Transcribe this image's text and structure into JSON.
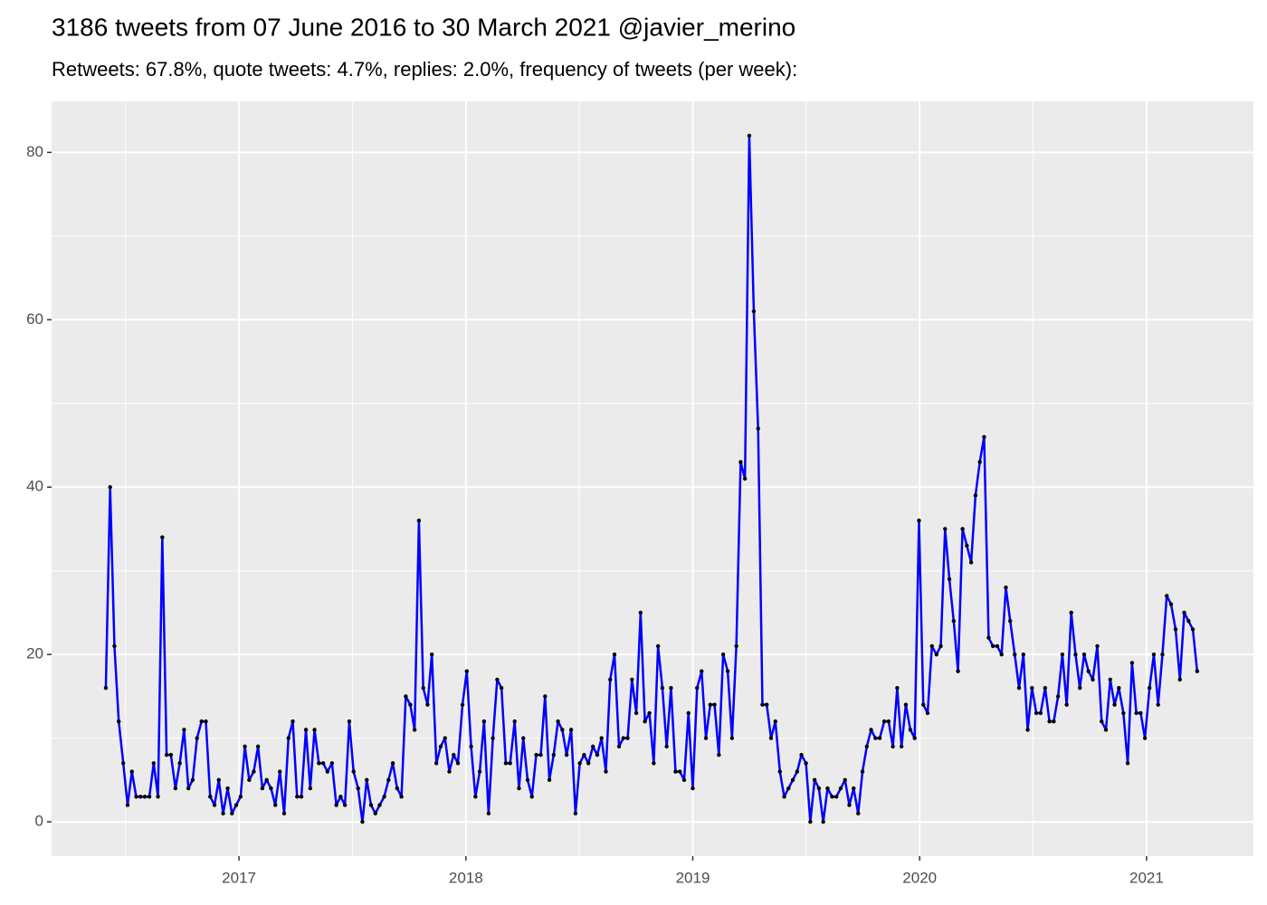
{
  "chart_data": {
    "type": "line",
    "title": "3186 tweets from 07 June 2016 to 30 March 2021 @javier_merino",
    "subtitle": "Retweets: 67.8%, quote tweets: 4.7%, replies: 2.0%, frequency of tweets (per week):",
    "x": [
      2016.413,
      2016.432,
      2016.451,
      2016.47,
      2016.49,
      2016.509,
      2016.528,
      2016.547,
      2016.566,
      2016.585,
      2016.605,
      2016.624,
      2016.643,
      2016.662,
      2016.681,
      2016.7,
      2016.72,
      2016.739,
      2016.758,
      2016.777,
      2016.796,
      2016.815,
      2016.835,
      2016.854,
      2016.873,
      2016.892,
      2016.911,
      2016.93,
      2016.95,
      2016.969,
      2016.988,
      2017.007,
      2017.026,
      2017.045,
      2017.065,
      2017.084,
      2017.103,
      2017.122,
      2017.141,
      2017.16,
      2017.18,
      2017.199,
      2017.218,
      2017.237,
      2017.256,
      2017.275,
      2017.295,
      2017.314,
      2017.333,
      2017.352,
      2017.371,
      2017.39,
      2017.41,
      2017.429,
      2017.448,
      2017.467,
      2017.486,
      2017.505,
      2017.525,
      2017.544,
      2017.563,
      2017.582,
      2017.601,
      2017.62,
      2017.64,
      2017.659,
      2017.678,
      2017.697,
      2017.716,
      2017.735,
      2017.755,
      2017.774,
      2017.793,
      2017.812,
      2017.831,
      2017.85,
      2017.87,
      2017.889,
      2017.908,
      2017.927,
      2017.946,
      2017.965,
      2017.985,
      2018.004,
      2018.023,
      2018.042,
      2018.061,
      2018.08,
      2018.1,
      2018.119,
      2018.138,
      2018.157,
      2018.176,
      2018.195,
      2018.215,
      2018.234,
      2018.253,
      2018.272,
      2018.291,
      2018.31,
      2018.33,
      2018.349,
      2018.368,
      2018.387,
      2018.406,
      2018.425,
      2018.444,
      2018.464,
      2018.483,
      2018.502,
      2018.521,
      2018.54,
      2018.56,
      2018.579,
      2018.598,
      2018.617,
      2018.636,
      2018.655,
      2018.675,
      2018.694,
      2018.713,
      2018.732,
      2018.751,
      2018.77,
      2018.789,
      2018.809,
      2018.828,
      2018.847,
      2018.866,
      2018.885,
      2018.904,
      2018.924,
      2018.943,
      2018.962,
      2018.981,
      2019.0,
      2019.019,
      2019.039,
      2019.058,
      2019.077,
      2019.096,
      2019.115,
      2019.134,
      2019.154,
      2019.173,
      2019.192,
      2019.211,
      2019.23,
      2019.249,
      2019.269,
      2019.288,
      2019.307,
      2019.326,
      2019.345,
      2019.364,
      2019.384,
      2019.403,
      2019.422,
      2019.441,
      2019.46,
      2019.479,
      2019.499,
      2019.518,
      2019.537,
      2019.556,
      2019.575,
      2019.594,
      2019.614,
      2019.633,
      2019.652,
      2019.671,
      2019.69,
      2019.709,
      2019.729,
      2019.748,
      2019.767,
      2019.786,
      2019.805,
      2019.824,
      2019.844,
      2019.863,
      2019.882,
      2019.901,
      2019.92,
      2019.939,
      2019.959,
      2019.978,
      2019.997,
      2020.016,
      2020.035,
      2020.054,
      2020.074,
      2020.093,
      2020.112,
      2020.131,
      2020.15,
      2020.169,
      2020.189,
      2020.208,
      2020.227,
      2020.246,
      2020.265,
      2020.284,
      2020.304,
      2020.323,
      2020.342,
      2020.361,
      2020.38,
      2020.399,
      2020.419,
      2020.438,
      2020.457,
      2020.476,
      2020.495,
      2020.514,
      2020.533,
      2020.553,
      2020.572,
      2020.591,
      2020.61,
      2020.629,
      2020.648,
      2020.668,
      2020.687,
      2020.706,
      2020.725,
      2020.744,
      2020.763,
      2020.783,
      2020.802,
      2020.821,
      2020.84,
      2020.859,
      2020.878,
      2020.898,
      2020.917,
      2020.936,
      2020.955,
      2020.974,
      2020.993,
      2021.013,
      2021.032,
      2021.051,
      2021.07,
      2021.089,
      2021.108,
      2021.128,
      2021.147,
      2021.166,
      2021.185,
      2021.204,
      2021.223
    ],
    "values": [
      16,
      40,
      21,
      12,
      7,
      2,
      6,
      3,
      3,
      3,
      3,
      7,
      3,
      34,
      8,
      8,
      4,
      7,
      11,
      4,
      5,
      10,
      12,
      12,
      3,
      2,
      5,
      1,
      4,
      1,
      2,
      3,
      9,
      5,
      6,
      9,
      4,
      5,
      4,
      2,
      6,
      1,
      10,
      12,
      3,
      3,
      11,
      4,
      11,
      7,
      7,
      6,
      7,
      2,
      3,
      2,
      12,
      6,
      4,
      0,
      5,
      2,
      1,
      2,
      3,
      5,
      7,
      4,
      3,
      15,
      14,
      11,
      36,
      16,
      14,
      20,
      7,
      9,
      10,
      6,
      8,
      7,
      14,
      18,
      9,
      3,
      6,
      12,
      1,
      10,
      17,
      16,
      7,
      7,
      12,
      4,
      10,
      5,
      3,
      8,
      8,
      15,
      5,
      8,
      12,
      11,
      8,
      11,
      1,
      7,
      8,
      7,
      9,
      8,
      10,
      6,
      17,
      20,
      9,
      10,
      10,
      17,
      13,
      25,
      12,
      13,
      7,
      21,
      16,
      9,
      16,
      6,
      6,
      5,
      13,
      4,
      16,
      18,
      10,
      14,
      14,
      8,
      20,
      18,
      10,
      21,
      43,
      41,
      82,
      61,
      47,
      14,
      14,
      10,
      12,
      6,
      3,
      4,
      5,
      6,
      8,
      7,
      0,
      5,
      4,
      0,
      4,
      3,
      3,
      4,
      5,
      2,
      4,
      1,
      6,
      9,
      11,
      10,
      10,
      12,
      12,
      9,
      16,
      9,
      14,
      11,
      10,
      36,
      14,
      13,
      21,
      20,
      21,
      35,
      29,
      24,
      18,
      35,
      33,
      31,
      39,
      43,
      46,
      22,
      21,
      21,
      20,
      28,
      24,
      20,
      16,
      20,
      11,
      16,
      13,
      13,
      16,
      12,
      12,
      15,
      20,
      14,
      25,
      20,
      16,
      20,
      18,
      17,
      21,
      12,
      11,
      17,
      14,
      16,
      13,
      7,
      19,
      13,
      13,
      10,
      16,
      20,
      14,
      20,
      27,
      26,
      23,
      17,
      25,
      24,
      23,
      18
    ],
    "color": "#0000ff",
    "point_color": "#000000",
    "xlim": [
      2016.174,
      2021.471
    ],
    "xticks": [
      2017,
      2018,
      2019,
      2020,
      2021
    ],
    "ylim": [
      -4.1,
      86.1
    ],
    "yticks": [
      0,
      20,
      40,
      60,
      80
    ],
    "grid": true
  }
}
